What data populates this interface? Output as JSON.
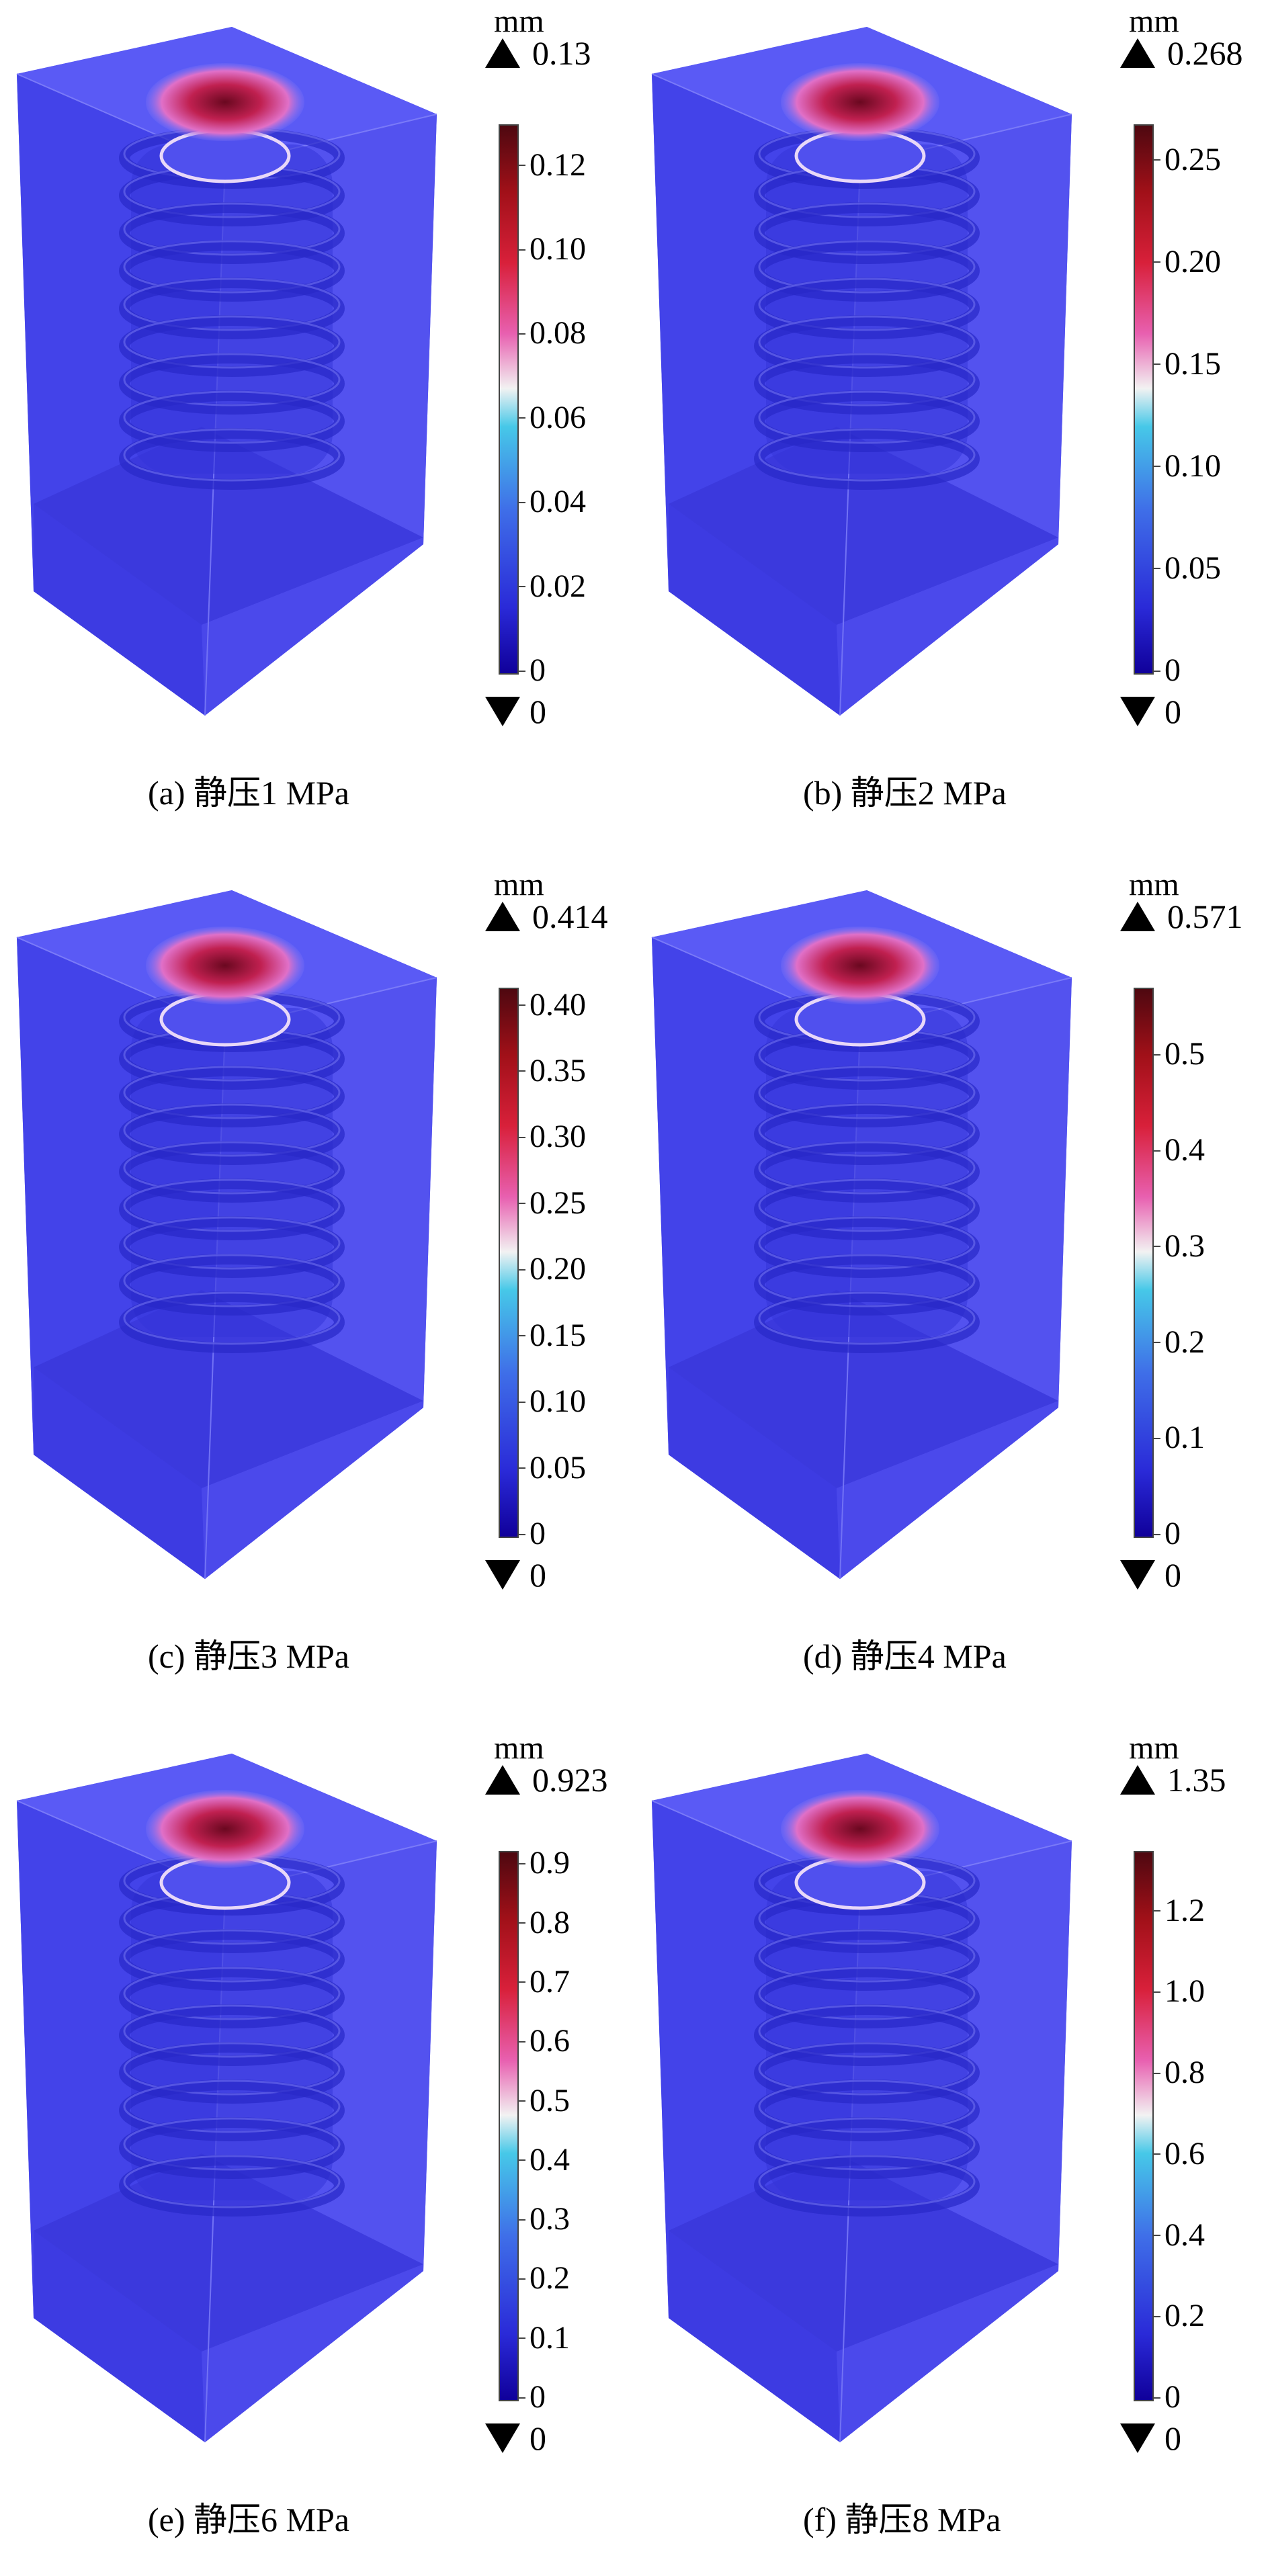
{
  "figure": {
    "panels": [
      {
        "id": "a",
        "caption": "(a) 静压1 MPa",
        "unit": "mm",
        "max": "0.13",
        "min": "0",
        "ticks": [
          "0.12",
          "0.10",
          "0.08",
          "0.06",
          "0.04",
          "0.02",
          "0"
        ],
        "tick_values": [
          0.12,
          0.1,
          0.08,
          0.06,
          0.04,
          0.02,
          0
        ],
        "range": [
          0,
          0.13
        ]
      },
      {
        "id": "b",
        "caption": "(b) 静压2 MPa",
        "unit": "mm",
        "max": "0.268",
        "min": "0",
        "ticks": [
          "0.25",
          "0.20",
          "0.15",
          "0.10",
          "0.05",
          "0"
        ],
        "tick_values": [
          0.25,
          0.2,
          0.15,
          0.1,
          0.05,
          0
        ],
        "range": [
          0,
          0.268
        ]
      },
      {
        "id": "c",
        "caption": "(c) 静压3 MPa",
        "unit": "mm",
        "max": "0.414",
        "min": "0",
        "ticks": [
          "0.40",
          "0.35",
          "0.30",
          "0.25",
          "0.20",
          "0.15",
          "0.10",
          "0.05",
          "0"
        ],
        "tick_values": [
          0.4,
          0.35,
          0.3,
          0.25,
          0.2,
          0.15,
          0.1,
          0.05,
          0
        ],
        "range": [
          0,
          0.414
        ]
      },
      {
        "id": "d",
        "caption": "(d) 静压4 MPa",
        "unit": "mm",
        "max": "0.571",
        "min": "0",
        "ticks": [
          "0.5",
          "0.4",
          "0.3",
          "0.2",
          "0.1",
          "0"
        ],
        "tick_values": [
          0.5,
          0.4,
          0.3,
          0.2,
          0.1,
          0
        ],
        "range": [
          0,
          0.571
        ]
      },
      {
        "id": "e",
        "caption": "(e) 静压6 MPa",
        "unit": "mm",
        "max": "0.923",
        "min": "0",
        "ticks": [
          "0.9",
          "0.8",
          "0.7",
          "0.6",
          "0.5",
          "0.4",
          "0.3",
          "0.2",
          "0.1",
          "0"
        ],
        "tick_values": [
          0.9,
          0.8,
          0.7,
          0.6,
          0.5,
          0.4,
          0.3,
          0.2,
          0.1,
          0
        ],
        "range": [
          0,
          0.923
        ]
      },
      {
        "id": "f",
        "caption": "(f) 静压8 MPa",
        "unit": "mm",
        "max": "1.35",
        "min": "0",
        "ticks": [
          "1.2",
          "1.0",
          "0.8",
          "0.6",
          "0.4",
          "0.2",
          "0"
        ],
        "tick_values": [
          1.2,
          1.0,
          0.8,
          0.6,
          0.4,
          0.2,
          0
        ],
        "range": [
          0,
          1.35
        ]
      }
    ],
    "colors": {
      "block": "#4a46f0",
      "coil": "#3a3ae0",
      "hot": "#b01040",
      "bar_low": "#10009a",
      "bar_high": "#4e0810"
    }
  }
}
